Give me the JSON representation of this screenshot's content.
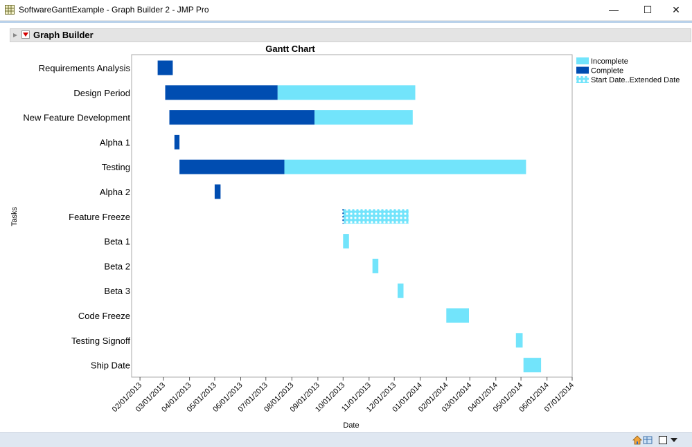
{
  "window": {
    "title": "SoftwareGanttExample - Graph Builder 2 - JMP Pro",
    "minimize_glyph": "—",
    "maximize_glyph": "☐",
    "close_glyph": "✕"
  },
  "outline": {
    "title": "Graph Builder"
  },
  "colors": {
    "incomplete": "#72e4fb",
    "complete": "#004db1",
    "extended": "#72e4fb",
    "extended_pattern_dots": "#ffffff",
    "frame_border": "#a9a9a9",
    "plot_bg": "#ffffff"
  },
  "status_icons": [
    "home-icon",
    "table-icon",
    "select-icon",
    "menu-arrow-icon"
  ],
  "chart_data": {
    "type": "gantt",
    "title": "Gantt Chart",
    "xlabel": "Date",
    "ylabel": "Tasks",
    "grid": false,
    "legend_position": "right",
    "xlim": [
      "2013-01-22",
      "2014-07-01"
    ],
    "x_ticks": [
      "2013-02-01",
      "2013-03-01",
      "2013-04-01",
      "2013-05-01",
      "2013-06-01",
      "2013-07-01",
      "2013-08-01",
      "2013-09-01",
      "2013-10-01",
      "2013-11-01",
      "2013-12-01",
      "2014-01-01",
      "2014-02-01",
      "2014-03-01",
      "2014-04-01",
      "2014-05-01",
      "2014-06-01",
      "2014-07-01"
    ],
    "x_tick_labels": [
      "02/01/2013",
      "03/01/2013",
      "04/01/2013",
      "05/01/2013",
      "06/01/2013",
      "07/01/2013",
      "08/01/2013",
      "09/01/2013",
      "10/01/2013",
      "11/01/2013",
      "12/01/2013",
      "01/01/2014",
      "02/01/2014",
      "03/01/2014",
      "04/01/2014",
      "05/01/2014",
      "06/01/2014",
      "07/01/2014"
    ],
    "legend": [
      {
        "key": "incomplete",
        "label": "Incomplete"
      },
      {
        "key": "complete",
        "label": "Complete"
      },
      {
        "key": "extended",
        "label": "Start Date..Extended Date"
      }
    ],
    "tasks": [
      {
        "name": "Requirements Analysis",
        "segments": [
          {
            "status": "complete",
            "start": "2013-02-22",
            "end": "2013-03-12"
          }
        ]
      },
      {
        "name": "Design Period",
        "segments": [
          {
            "status": "complete",
            "start": "2013-03-03",
            "end": "2013-07-15"
          },
          {
            "status": "incomplete",
            "start": "2013-07-15",
            "end": "2013-12-26"
          }
        ]
      },
      {
        "name": "New Feature Development",
        "segments": [
          {
            "status": "complete",
            "start": "2013-03-08",
            "end": "2013-08-28"
          },
          {
            "status": "incomplete",
            "start": "2013-08-28",
            "end": "2013-12-23"
          }
        ]
      },
      {
        "name": "Alpha 1",
        "segments": [
          {
            "status": "complete",
            "start": "2013-03-14",
            "end": "2013-03-20"
          }
        ]
      },
      {
        "name": "Testing",
        "segments": [
          {
            "status": "complete",
            "start": "2013-03-20",
            "end": "2013-07-23"
          },
          {
            "status": "incomplete",
            "start": "2013-07-23",
            "end": "2014-05-07"
          }
        ]
      },
      {
        "name": "Alpha 2",
        "segments": [
          {
            "status": "complete",
            "start": "2013-05-01",
            "end": "2013-05-08"
          }
        ]
      },
      {
        "name": "Feature Freeze",
        "segments": [
          {
            "status": "extended",
            "start": "2013-10-01",
            "end": "2013-12-18"
          }
        ]
      },
      {
        "name": "Beta 1",
        "segments": [
          {
            "status": "incomplete",
            "start": "2013-10-01",
            "end": "2013-10-08"
          }
        ]
      },
      {
        "name": "Beta 2",
        "segments": [
          {
            "status": "incomplete",
            "start": "2013-11-05",
            "end": "2013-11-12"
          }
        ]
      },
      {
        "name": "Beta 3",
        "segments": [
          {
            "status": "incomplete",
            "start": "2013-12-05",
            "end": "2013-12-12"
          }
        ]
      },
      {
        "name": "Code Freeze",
        "segments": [
          {
            "status": "incomplete",
            "start": "2014-02-01",
            "end": "2014-02-28"
          }
        ]
      },
      {
        "name": "Testing Signoff",
        "segments": [
          {
            "status": "incomplete",
            "start": "2014-04-25",
            "end": "2014-05-03"
          }
        ]
      },
      {
        "name": "Ship Date",
        "segments": [
          {
            "status": "incomplete",
            "start": "2014-05-04",
            "end": "2014-05-25"
          }
        ]
      }
    ]
  }
}
